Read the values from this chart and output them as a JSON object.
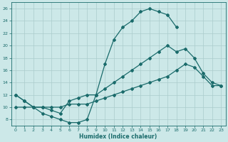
{
  "xlabel": "Humidex (Indice chaleur)",
  "background_color": "#cce8e8",
  "grid_color": "#aacccc",
  "line_color": "#1a6b6b",
  "xlim": [
    -0.5,
    23.5
  ],
  "ylim": [
    7,
    27
  ],
  "xticks": [
    0,
    1,
    2,
    3,
    4,
    5,
    6,
    7,
    8,
    9,
    10,
    11,
    12,
    13,
    14,
    15,
    16,
    17,
    18,
    19,
    20,
    21,
    22,
    23
  ],
  "yticks": [
    8,
    10,
    12,
    14,
    16,
    18,
    20,
    22,
    24,
    26
  ],
  "curve1_x": [
    0,
    1,
    2,
    3,
    4,
    5,
    6,
    7,
    8,
    9,
    10,
    11,
    12,
    13,
    14,
    15,
    16,
    17,
    18
  ],
  "curve1_y": [
    12,
    11,
    10,
    9,
    8.5,
    8,
    7.5,
    7.5,
    8,
    12,
    17,
    21,
    23,
    24,
    25.5,
    26,
    25.5,
    25,
    23
  ],
  "curve2_x": [
    0,
    1,
    2,
    3,
    4,
    5,
    6,
    7,
    8,
    9,
    10,
    11,
    12,
    13,
    14,
    15,
    16,
    17,
    18,
    19,
    20,
    21,
    22,
    23
  ],
  "curve2_y": [
    12,
    11,
    10,
    10,
    9.5,
    9,
    11,
    11.5,
    12,
    12,
    13,
    14,
    15,
    16,
    17,
    18,
    19,
    20,
    19,
    19.5,
    18,
    15.5,
    14,
    13.5
  ],
  "curve3_x": [
    0,
    1,
    2,
    3,
    4,
    5,
    6,
    7,
    8,
    9,
    10,
    11,
    12,
    13,
    14,
    15,
    16,
    17,
    18,
    19,
    20,
    21,
    22,
    23
  ],
  "curve3_y": [
    10,
    10,
    10,
    10,
    10,
    10,
    10.5,
    10.5,
    10.5,
    11,
    11.5,
    12,
    12.5,
    13,
    13.5,
    14,
    14.5,
    15,
    16,
    17,
    16.5,
    15,
    13.5,
    13.5
  ]
}
